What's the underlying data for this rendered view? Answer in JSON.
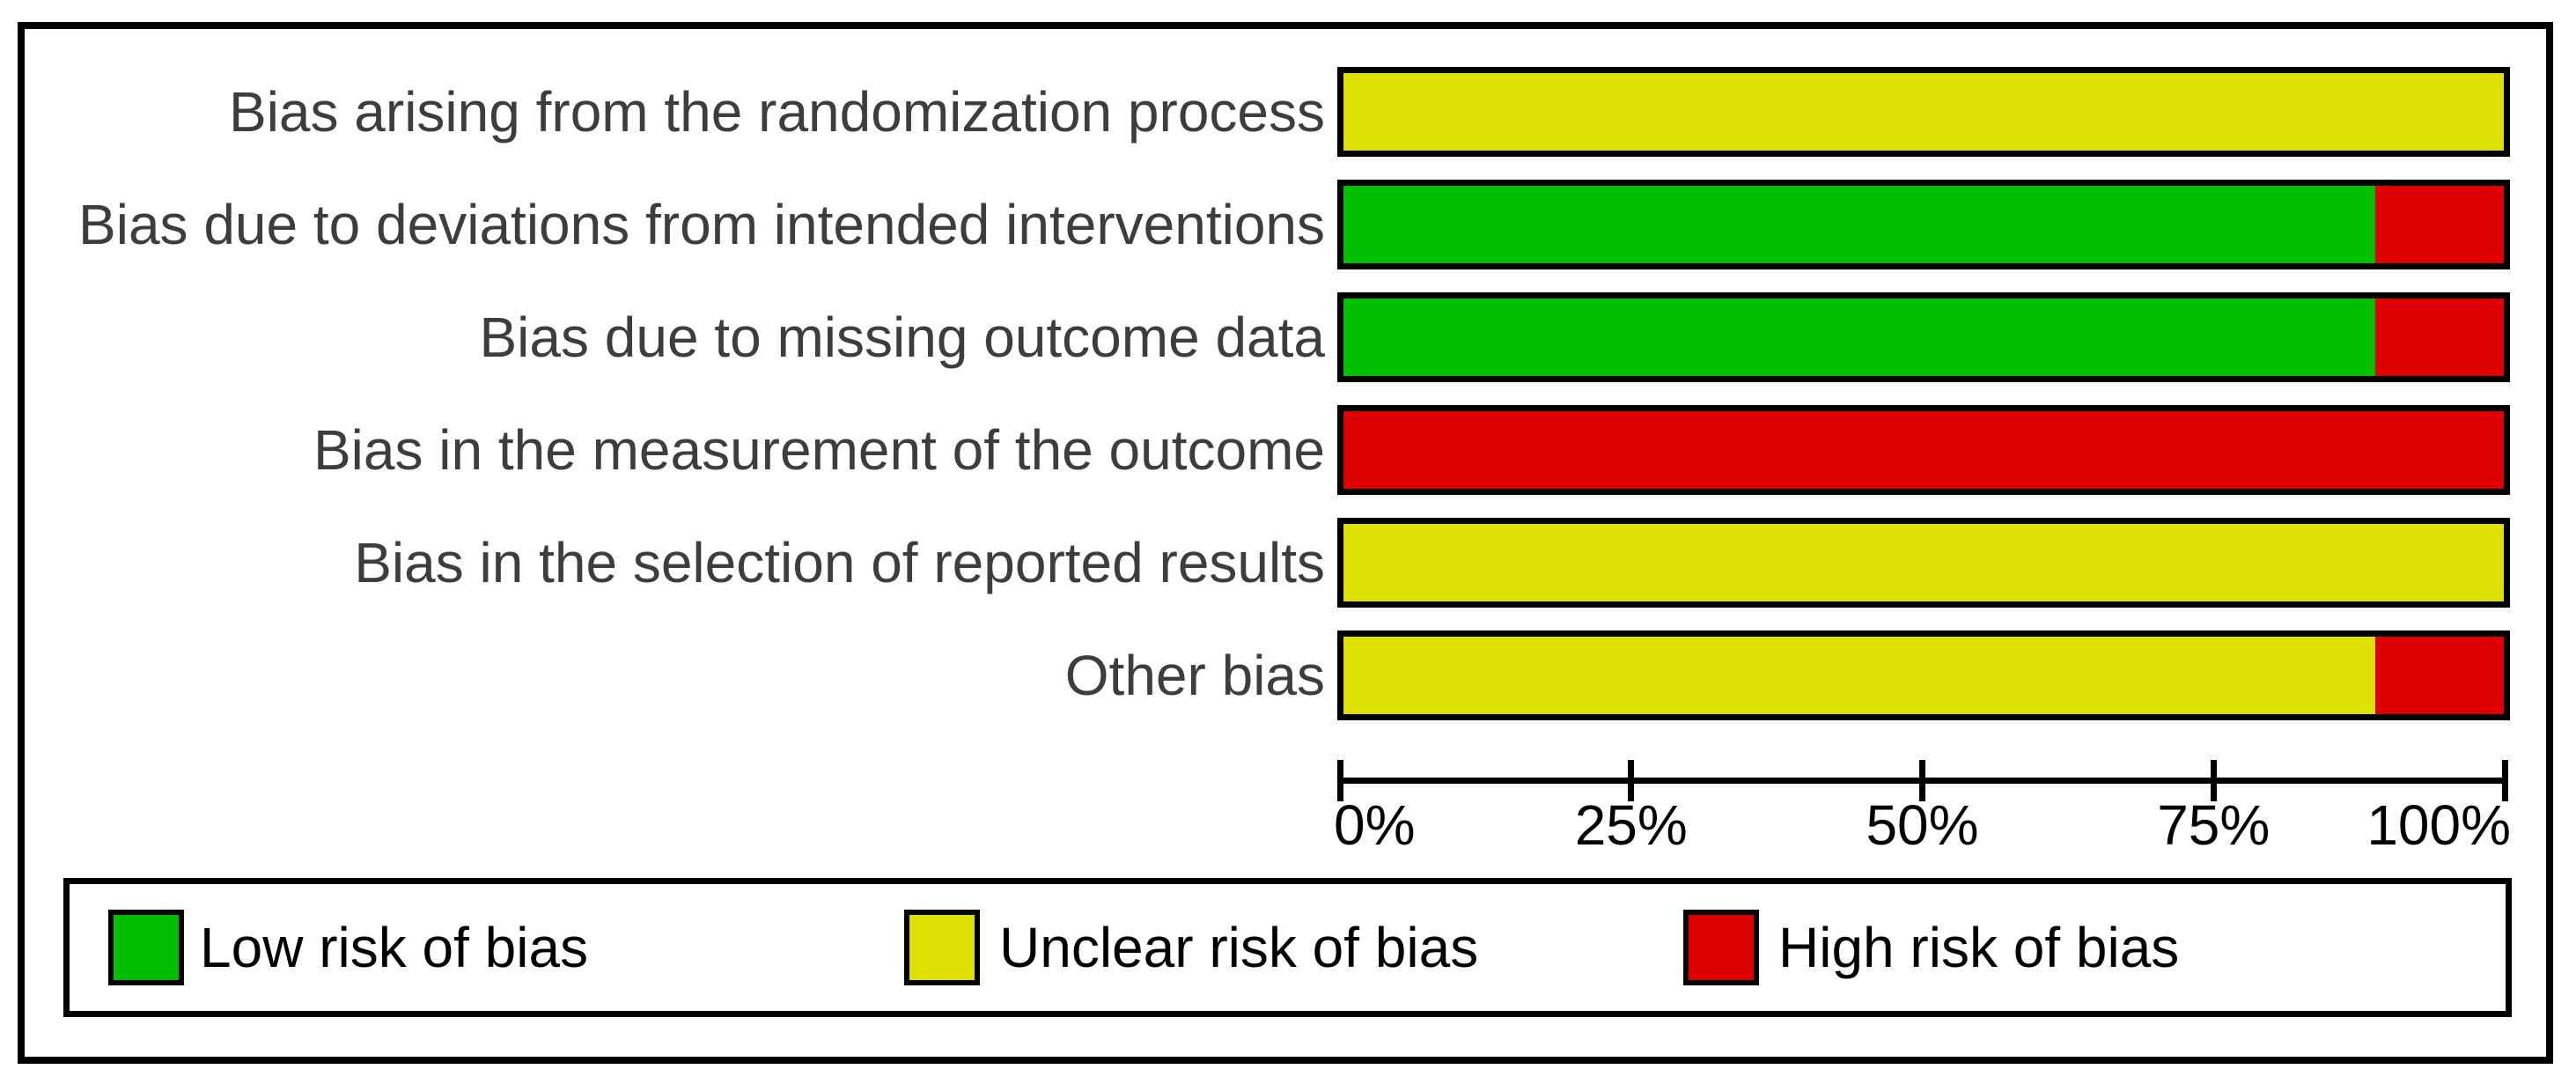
{
  "chart_data": {
    "type": "bar",
    "orientation": "horizontal",
    "stacked": true,
    "title": "",
    "categories": [
      "Bias arising from the randomization process",
      "Bias due to deviations from intended interventions",
      "Bias due to missing outcome data",
      "Bias in the measurement of the outcome",
      "Bias in the selection of reported results",
      "Other bias"
    ],
    "series": [
      {
        "name": "Low risk of bias",
        "color": "#00BE00",
        "values": [
          0,
          88.9,
          88.9,
          0,
          0,
          0
        ]
      },
      {
        "name": "Unclear risk of bias",
        "color": "#DDE000",
        "values": [
          100,
          0,
          0,
          0,
          100,
          88.9
        ]
      },
      {
        "name": "High risk of bias",
        "color": "#DD0000",
        "values": [
          0,
          11.1,
          11.1,
          100,
          0,
          11.1
        ]
      }
    ],
    "x_ticks": [
      "0%",
      "25%",
      "50%",
      "75%",
      "100%"
    ],
    "x_tick_positions": [
      0,
      25,
      50,
      75,
      100
    ],
    "xlim": [
      0,
      100
    ],
    "grid": false,
    "legend_position": "bottom"
  },
  "colors": {
    "low": "#00BE00",
    "unclear": "#DDE000",
    "high": "#DD0000",
    "ink": "#000000",
    "row_label_text": "#3d3d3d",
    "background": "#ffffff"
  }
}
